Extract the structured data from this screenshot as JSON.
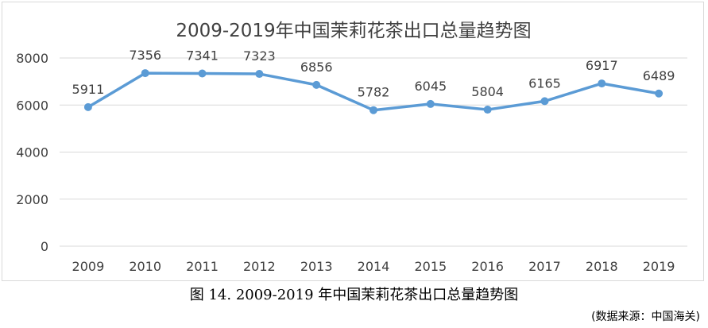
{
  "chart_data": {
    "type": "line",
    "title": "2009-2019年中国茉莉花茶出口总量趋势图",
    "categories": [
      "2009",
      "2010",
      "2011",
      "2012",
      "2013",
      "2014",
      "2015",
      "2016",
      "2017",
      "2018",
      "2019"
    ],
    "series": [
      {
        "values": [
          5911,
          7356,
          7341,
          7323,
          6856,
          5782,
          6045,
          5804,
          6165,
          6917,
          6489
        ]
      }
    ],
    "ylim": [
      0,
      8000
    ],
    "yticks": [
      0,
      2000,
      4000,
      6000,
      8000
    ],
    "grid": true,
    "line_color": "#5b9bd5",
    "data_labels": true
  },
  "caption": "图 14. 2009-2019 年中国茉莉花茶出口总量趋势图",
  "source": "(数据来源：中国海关)"
}
